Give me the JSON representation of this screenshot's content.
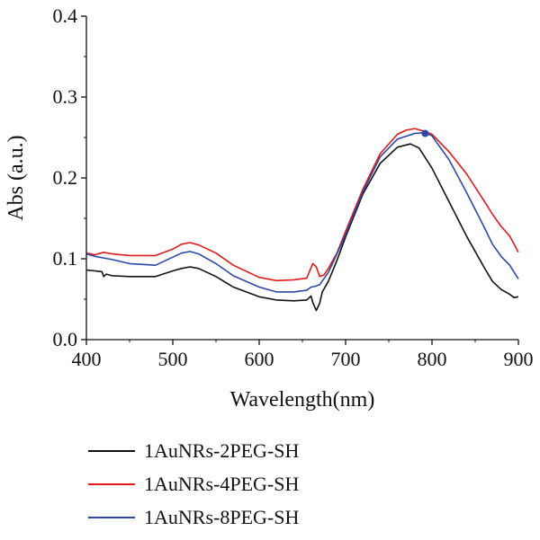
{
  "chart_data": {
    "type": "line",
    "title": "",
    "xlabel": "Wavelength(nm)",
    "ylabel": "Abs (a.u.)",
    "xlim": [
      400,
      900
    ],
    "ylim": [
      0.0,
      0.4
    ],
    "xticks": [
      "400",
      "500",
      "600",
      "700",
      "800",
      "900"
    ],
    "yticks": [
      "0.0",
      "0.1",
      "0.2",
      "0.3",
      "0.4"
    ],
    "grid": false,
    "legend_position": "bottom",
    "series": [
      {
        "name": "1AuNRs-2PEG-SH",
        "color": "#111111",
        "x": [
          400,
          410,
          418,
          420,
          423,
          430,
          450,
          480,
          500,
          510,
          520,
          530,
          550,
          570,
          600,
          620,
          640,
          655,
          660,
          662,
          666,
          670,
          673,
          680,
          690,
          700,
          720,
          740,
          760,
          775,
          785,
          800,
          820,
          840,
          860,
          870,
          880,
          890,
          895,
          900
        ],
        "y": [
          0.086,
          0.085,
          0.084,
          0.078,
          0.081,
          0.079,
          0.078,
          0.078,
          0.085,
          0.088,
          0.09,
          0.088,
          0.078,
          0.065,
          0.053,
          0.049,
          0.048,
          0.049,
          0.054,
          0.046,
          0.036,
          0.045,
          0.059,
          0.072,
          0.098,
          0.127,
          0.18,
          0.218,
          0.238,
          0.242,
          0.237,
          0.212,
          0.17,
          0.128,
          0.09,
          0.072,
          0.062,
          0.056,
          0.052,
          0.053
        ]
      },
      {
        "name": "1AuNRs-4PEG-SH",
        "color": "#e21a1a",
        "x": [
          400,
          410,
          420,
          430,
          450,
          480,
          500,
          510,
          520,
          530,
          550,
          570,
          600,
          620,
          640,
          655,
          662,
          666,
          670,
          675,
          680,
          690,
          700,
          720,
          740,
          760,
          770,
          780,
          790,
          800,
          820,
          840,
          860,
          870,
          880,
          890,
          900
        ],
        "y": [
          0.107,
          0.105,
          0.108,
          0.106,
          0.104,
          0.104,
          0.112,
          0.118,
          0.12,
          0.117,
          0.107,
          0.092,
          0.077,
          0.073,
          0.074,
          0.076,
          0.094,
          0.09,
          0.078,
          0.08,
          0.088,
          0.107,
          0.134,
          0.186,
          0.23,
          0.254,
          0.259,
          0.261,
          0.258,
          0.254,
          0.232,
          0.205,
          0.172,
          0.155,
          0.14,
          0.128,
          0.108
        ]
      },
      {
        "name": "1AuNRs-8PEG-SH",
        "color": "#2b48a8",
        "x": [
          400,
          410,
          420,
          430,
          450,
          480,
          500,
          510,
          520,
          530,
          550,
          570,
          600,
          620,
          640,
          655,
          660,
          665,
          670,
          680,
          690,
          700,
          720,
          740,
          760,
          780,
          792,
          800,
          820,
          840,
          860,
          870,
          880,
          890,
          900
        ],
        "y": [
          0.106,
          0.103,
          0.101,
          0.099,
          0.094,
          0.092,
          0.102,
          0.107,
          0.109,
          0.106,
          0.094,
          0.079,
          0.065,
          0.059,
          0.059,
          0.061,
          0.065,
          0.066,
          0.068,
          0.083,
          0.106,
          0.13,
          0.183,
          0.226,
          0.248,
          0.255,
          0.256,
          0.252,
          0.222,
          0.182,
          0.14,
          0.118,
          0.103,
          0.092,
          0.075
        ]
      }
    ],
    "markers": [
      {
        "series": "1AuNRs-8PEG-SH",
        "x": 792,
        "y": 0.255
      }
    ]
  }
}
